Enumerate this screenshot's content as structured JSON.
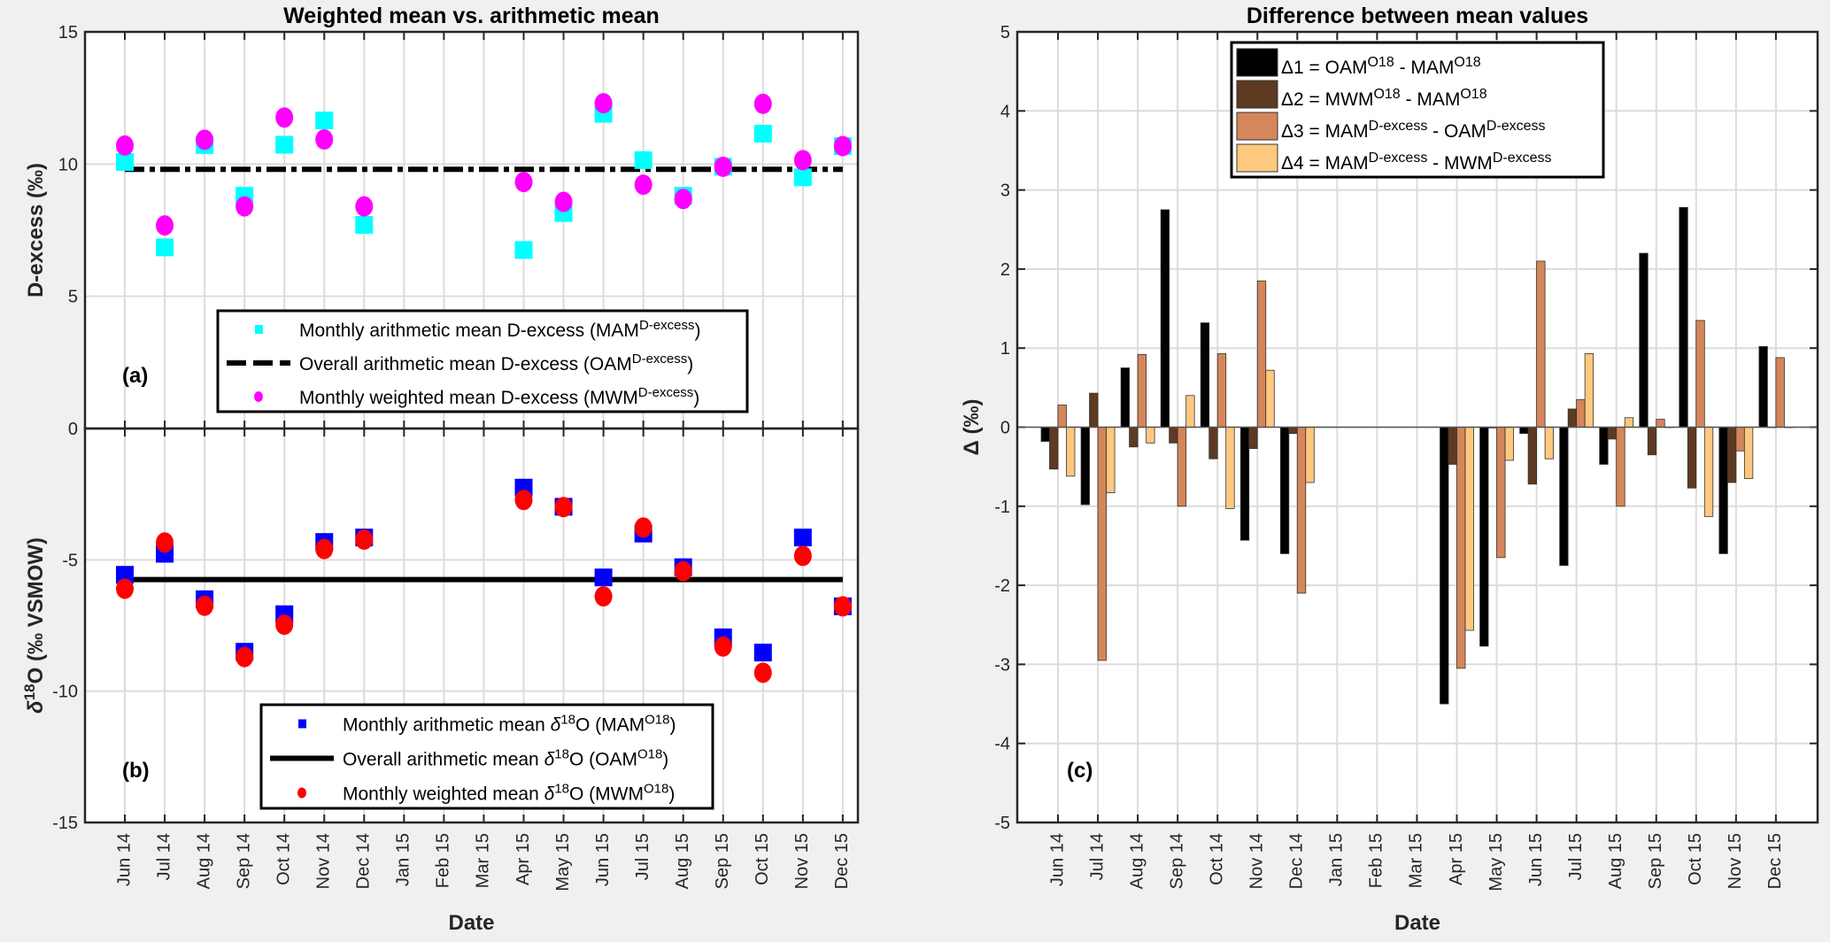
{
  "chart_data": [
    {
      "panel": "(a)",
      "type": "scatter",
      "title": "Weighted mean vs. arithmetic mean",
      "ylabel": [
        [
          "D-excess (‰)",
          ""
        ]
      ],
      "xlabel": "",
      "ylim": [
        0,
        15
      ],
      "yticks": [
        0,
        5,
        10,
        15
      ],
      "grid": true,
      "legend_placement": "bottom-center",
      "categories": [
        "Jun 14",
        "Jul 14",
        "Aug 14",
        "Sep 14",
        "Oct 14",
        "Nov 14",
        "Dec 14",
        "Jan 15",
        "Feb 15",
        "Mar 15",
        "Apr 15",
        "May 15",
        "Jun 15",
        "Jul 15",
        "Aug 15",
        "Sep 15",
        "Oct 15",
        "Nov 15",
        "Dec 15"
      ],
      "series": [
        {
          "label": [
            [
              "Monthly arithmetic mean D-excess (MAM",
              ""
            ],
            [
              "D-excess",
              "sup"
            ],
            [
              ")",
              ""
            ]
          ],
          "marker": "square",
          "color": "#00ffff",
          "values": [
            10.08,
            6.85,
            10.72,
            8.8,
            10.73,
            11.65,
            7.7,
            null,
            null,
            null,
            6.75,
            8.15,
            11.9,
            10.15,
            8.8,
            9.9,
            11.15,
            9.5,
            10.68
          ]
        },
        {
          "label": [
            [
              "Overall arithmetic mean D-excess  (OAM",
              ""
            ],
            [
              "D-excess",
              "sup"
            ],
            [
              ")",
              ""
            ]
          ],
          "marker": "dash-dot-line",
          "color": "#000000",
          "constant": 9.8
        },
        {
          "label": [
            [
              "Monthly weighted mean D-excess  (MWM",
              ""
            ],
            [
              "D-excess",
              "sup"
            ],
            [
              ")",
              ""
            ]
          ],
          "marker": "circle",
          "color": "#ff00ff",
          "values": [
            10.7,
            7.68,
            10.92,
            8.4,
            11.76,
            10.93,
            8.4,
            null,
            null,
            null,
            9.32,
            8.57,
            12.3,
            9.22,
            8.68,
            9.9,
            12.28,
            10.15,
            10.68
          ]
        }
      ]
    },
    {
      "panel": "(b)",
      "type": "scatter",
      "title": "",
      "ylabel": [
        [
          "δ",
          "it"
        ],
        [
          "18",
          "sup"
        ],
        [
          "O (‰ VSMOW)",
          ""
        ]
      ],
      "xlabel": "Date",
      "ylim": [
        -15,
        0
      ],
      "yticks": [
        -15,
        -10,
        -5
      ],
      "grid": true,
      "legend_placement": "bottom-center",
      "categories": [
        "Jun 14",
        "Jul 14",
        "Aug 14",
        "Sep 14",
        "Oct 14",
        "Nov 14",
        "Dec 14",
        "Jan 15",
        "Feb 15",
        "Mar 15",
        "Apr 15",
        "May 15",
        "Jun 15",
        "Jul 15",
        "Aug 15",
        "Sep 15",
        "Oct 15",
        "Nov 15",
        "Dec 15"
      ],
      "series": [
        {
          "label": [
            [
              "Monthly arithmetic mean ",
              ""
            ],
            [
              "δ",
              "it"
            ],
            [
              "18",
              "sup"
            ],
            [
              "O (MAM",
              ""
            ],
            [
              "O18",
              "sup"
            ],
            [
              ")",
              ""
            ]
          ],
          "marker": "square",
          "color": "#0000ff",
          "values": [
            -5.57,
            -4.77,
            -6.5,
            -8.5,
            -7.07,
            -4.32,
            -4.15,
            null,
            null,
            null,
            -2.25,
            -2.98,
            -5.67,
            -4.0,
            -5.28,
            -7.95,
            -8.53,
            -4.15,
            -6.77
          ]
        },
        {
          "label": [
            [
              "Overall arithmetic mean ",
              ""
            ],
            [
              "δ",
              "it"
            ],
            [
              "18",
              "sup"
            ],
            [
              "O  (OAM",
              ""
            ],
            [
              "O18",
              "sup"
            ],
            [
              ")",
              ""
            ]
          ],
          "marker": "solid-line",
          "color": "#000000",
          "constant": -5.75
        },
        {
          "label": [
            [
              "Monthly weighted mean ",
              ""
            ],
            [
              "δ",
              "it"
            ],
            [
              "18",
              "sup"
            ],
            [
              "O  (MWM",
              ""
            ],
            [
              "O18",
              "sup"
            ],
            [
              ")",
              ""
            ]
          ],
          "marker": "circle",
          "color": "#ff0000",
          "values": [
            -6.1,
            -4.34,
            -6.75,
            -8.7,
            -7.47,
            -4.59,
            -4.23,
            null,
            null,
            null,
            -2.72,
            -2.99,
            -6.39,
            -3.77,
            -5.43,
            -8.3,
            -9.3,
            -4.85,
            -6.77
          ]
        }
      ]
    },
    {
      "panel": "(c)",
      "type": "bar",
      "title": "Difference between mean values",
      "ylabel": [
        [
          "Δ (‰)",
          ""
        ]
      ],
      "xlabel": "Date",
      "ylim": [
        -5,
        5
      ],
      "yticks": [
        -5,
        -4,
        -3,
        -2,
        -1,
        0,
        1,
        2,
        3,
        4,
        5
      ],
      "grid": true,
      "legend_placement": "top-center",
      "categories": [
        "Jun 14",
        "Jul 14",
        "Aug 14",
        "Sep 14",
        "Oct 14",
        "Nov 14",
        "Dec 14",
        "Jan 15",
        "Feb 15",
        "Mar 15",
        "Apr 15",
        "May 15",
        "Jun 15",
        "Jul 15",
        "Aug 15",
        "Sep 15",
        "Oct 15",
        "Nov 15",
        "Dec 15"
      ],
      "series": [
        {
          "label": [
            [
              "Δ1 = OAM",
              ""
            ],
            [
              "O18",
              "sup"
            ],
            [
              " - MAM",
              ""
            ],
            [
              "O18",
              "sup"
            ]
          ],
          "color": "#000000",
          "values": [
            -0.18,
            -0.98,
            0.75,
            2.75,
            1.32,
            -1.43,
            -1.6,
            null,
            null,
            null,
            -3.5,
            -2.77,
            -0.08,
            -1.75,
            -0.47,
            2.2,
            2.78,
            -1.6,
            1.02
          ]
        },
        {
          "label": [
            [
              "Δ2 = MWM",
              ""
            ],
            [
              "O18",
              "sup"
            ],
            [
              " - MAM",
              ""
            ],
            [
              "O18",
              "sup"
            ]
          ],
          "color": "#5e3a22",
          "values": [
            -0.53,
            0.43,
            -0.25,
            -0.2,
            -0.4,
            -0.27,
            -0.08,
            null,
            null,
            null,
            -0.47,
            -0.01,
            -0.72,
            0.23,
            -0.15,
            -0.35,
            -0.77,
            -0.7,
            0
          ]
        },
        {
          "label": [
            [
              "Δ3 = MAM",
              ""
            ],
            [
              "D-excess",
              "sup"
            ],
            [
              " - OAM",
              ""
            ],
            [
              "D-excess",
              "sup"
            ]
          ],
          "color": "#d5865a",
          "values": [
            0.28,
            -2.95,
            0.92,
            -1.0,
            0.93,
            1.85,
            -2.1,
            null,
            null,
            null,
            -3.05,
            -1.65,
            2.1,
            0.35,
            -1.0,
            0.1,
            1.35,
            -0.3,
            0.88
          ]
        },
        {
          "label": [
            [
              "Δ4 = MAM",
              ""
            ],
            [
              "D-excess",
              "sup"
            ],
            [
              " - MWM",
              ""
            ],
            [
              "D-excess",
              "sup"
            ]
          ],
          "color": "#ffc87f",
          "values": [
            -0.62,
            -0.83,
            -0.2,
            0.4,
            -1.03,
            0.72,
            -0.7,
            null,
            null,
            null,
            -2.57,
            -0.42,
            -0.4,
            0.93,
            0.12,
            0.0,
            -1.13,
            -0.65,
            0
          ]
        }
      ]
    }
  ]
}
